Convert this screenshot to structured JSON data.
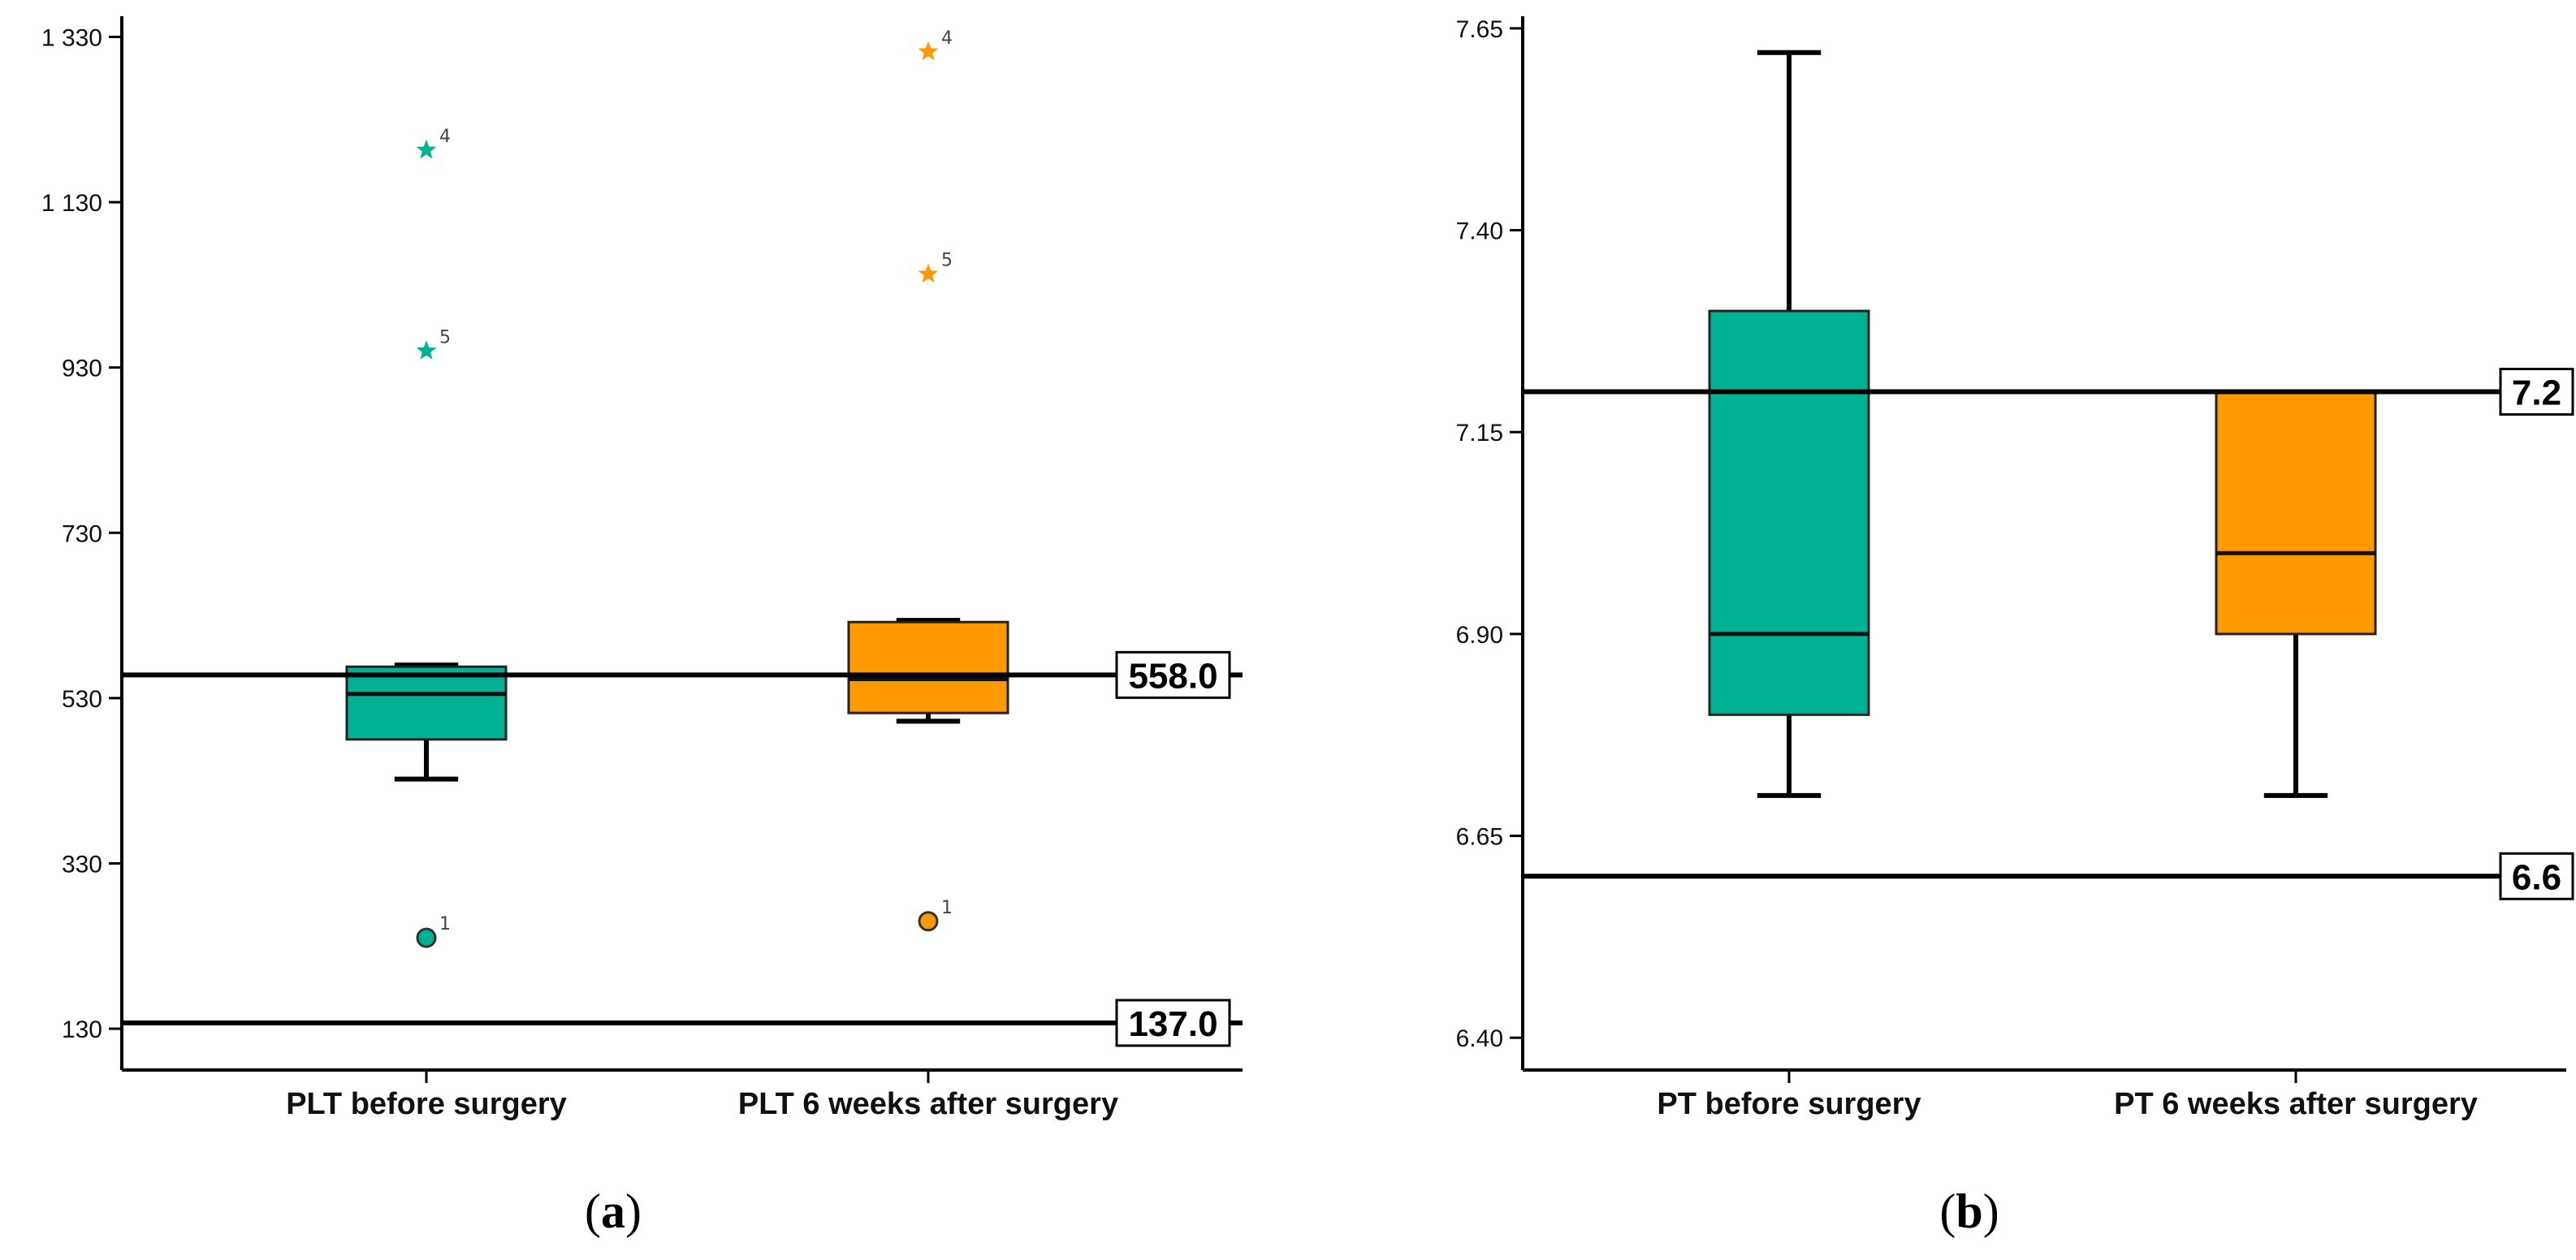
{
  "colors": {
    "group1": "#00b294",
    "group2": "#ff9900",
    "axis": "#000000"
  },
  "chart_data": [
    {
      "type": "boxplot",
      "panel_label": {
        "open": "(",
        "letter": "a",
        "close": ")"
      },
      "ylim": [
        80,
        1355
      ],
      "yticks": [
        130,
        330,
        530,
        730,
        930,
        1130,
        1330
      ],
      "ytick_labels": [
        "130",
        "330",
        "530",
        "730",
        "930",
        "1 130",
        "1 330"
      ],
      "categories": [
        "PLT before surgery",
        "PLT 6 weeks after surgery"
      ],
      "boxes": [
        {
          "q1": 480,
          "median": 535,
          "q3": 568,
          "whisker_low": 432,
          "whisker_high": 570
        },
        {
          "q1": 512,
          "median": 553,
          "q3": 622,
          "whisker_low": 502,
          "whisker_high": 624
        }
      ],
      "outliers": [
        [
          {
            "value": 1193,
            "label": "4",
            "marker": "star"
          },
          {
            "value": 950,
            "label": "5",
            "marker": "star"
          },
          {
            "value": 240,
            "label": "1",
            "marker": "circle"
          }
        ],
        [
          {
            "value": 1312,
            "label": "4",
            "marker": "star"
          },
          {
            "value": 1043,
            "label": "5",
            "marker": "star"
          },
          {
            "value": 260,
            "label": "1",
            "marker": "circle"
          }
        ]
      ],
      "reference_lines": [
        {
          "value": 558,
          "label": "558.0"
        },
        {
          "value": 137,
          "label": "137.0"
        }
      ]
    },
    {
      "type": "boxplot",
      "panel_label": {
        "open": "(",
        "letter": "b",
        "close": ")"
      },
      "ylim": [
        6.36,
        7.665
      ],
      "yticks": [
        6.4,
        6.65,
        6.9,
        7.15,
        7.4,
        7.65
      ],
      "ytick_labels": [
        "6.40",
        "6.65",
        "6.90",
        "7.15",
        "7.40",
        "7.65"
      ],
      "categories": [
        "PT before surgery",
        "PT 6 weeks after surgery"
      ],
      "boxes": [
        {
          "q1": 6.8,
          "median": 6.9,
          "q3": 7.3,
          "whisker_low": 6.7,
          "whisker_high": 7.62
        },
        {
          "q1": 6.9,
          "median": 7.0,
          "q3": 7.2,
          "whisker_low": 6.7,
          "whisker_high": 7.2
        }
      ],
      "outliers": [
        [],
        []
      ],
      "reference_lines": [
        {
          "value": 7.2,
          "label": "7.2"
        },
        {
          "value": 6.6,
          "label": "6.6"
        }
      ]
    }
  ]
}
